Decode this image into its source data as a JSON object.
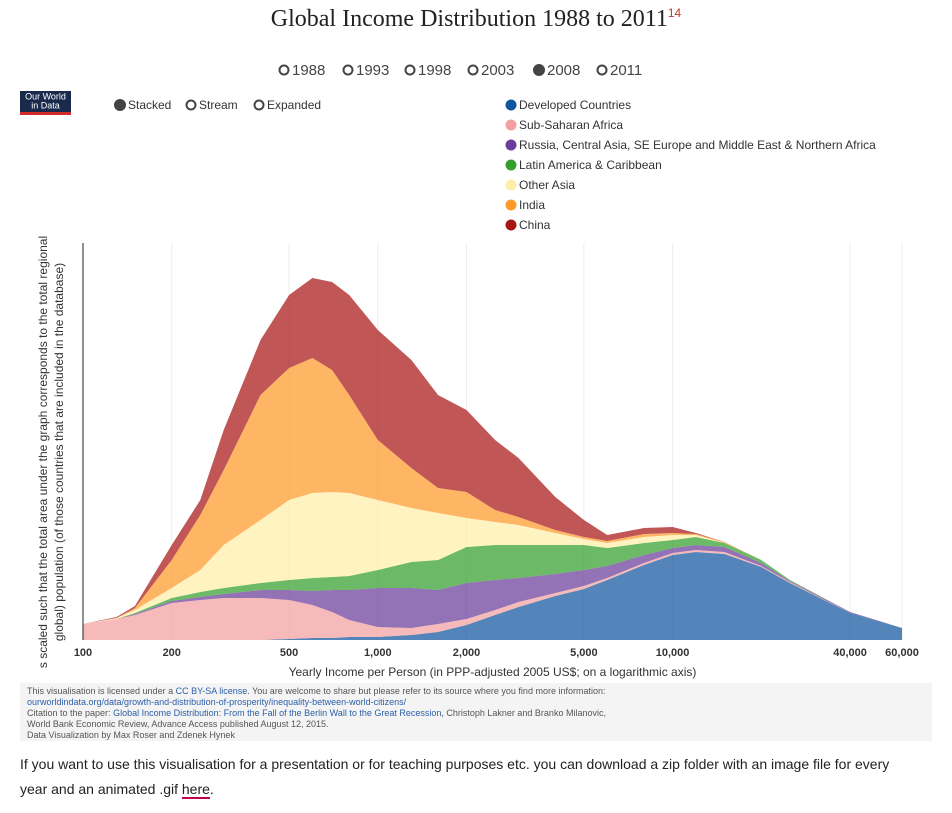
{
  "header": {
    "title": "Global Income Distribution 1988 to 2011",
    "footnote_ref": "14",
    "years": [
      "1988",
      "1993",
      "1998",
      "2003",
      "2008",
      "2011"
    ],
    "selected_year": 4,
    "logo": [
      "Our World",
      "in Data"
    ],
    "modes": [
      "Stacked",
      "Stream",
      "Expanded"
    ],
    "selected_mode": 0
  },
  "chart_data": {
    "type": "stacked-area",
    "x_label": "Yearly Income per Person (in PPP-adjusted 2005 US$; on a logarithmic axis)",
    "y_label": [
      "s scaled such that the total area under the graph corresponds to the total regional",
      "global) population (of those countries that are included in the database)"
    ],
    "x": [
      100,
      130,
      150,
      200,
      250,
      300,
      400,
      500,
      600,
      700,
      800,
      1000,
      1300,
      1600,
      2000,
      2500,
      3000,
      4000,
      5000,
      6000,
      8000,
      10000,
      12000,
      15000,
      20000,
      25000,
      40000,
      60000
    ],
    "xlim": [
      100,
      60000
    ],
    "x_log": true,
    "xticks": [
      100,
      200,
      500,
      {
        "value": 1000,
        "label": "1,000"
      },
      {
        "value": 2000,
        "label": "2,000"
      },
      {
        "value": 5000,
        "label": "5,000"
      },
      {
        "value": 10000,
        "label": "10,000"
      },
      {
        "value": 40000,
        "label": "40,000"
      },
      {
        "value": 60000,
        "label": "60,000"
      }
    ],
    "ylim": [
      0,
      400
    ],
    "grid": true,
    "fill_opacity": 0.72,
    "series": [
      {
        "name": "Developed Countries",
        "color": "#1055a0",
        "values": [
          0,
          0,
          0,
          0,
          0,
          0,
          0,
          1,
          2,
          2,
          3,
          3,
          5,
          8,
          15,
          25,
          33,
          44,
          51,
          60,
          75,
          85,
          88,
          86,
          73,
          57,
          27,
          12
        ]
      },
      {
        "name": "Sub-Saharan Africa",
        "color": "#f4a0a0",
        "values": [
          16,
          21,
          25,
          37,
          40,
          42,
          42,
          39,
          33,
          26,
          17,
          10,
          7,
          8,
          6,
          5,
          5,
          3,
          3,
          2,
          2,
          2,
          2,
          2,
          1,
          1,
          0,
          0
        ]
      },
      {
        "name": "Russia, Central Asia, SE Europe and Middle East & Northern Africa",
        "color": "#6a3d9a",
        "values": [
          0,
          0,
          1,
          2,
          3,
          4,
          8,
          10,
          14,
          22,
          30,
          39,
          40,
          34,
          36,
          30,
          24,
          19,
          16,
          12,
          8,
          5,
          5,
          5,
          3,
          1,
          1,
          0
        ]
      },
      {
        "name": "Latin America & Caribbean",
        "color": "#33a02c",
        "values": [
          0,
          0,
          1,
          3,
          5,
          6,
          7,
          10,
          13,
          13,
          14,
          18,
          26,
          30,
          36,
          35,
          33,
          29,
          25,
          18,
          12,
          8,
          8,
          4,
          3,
          1,
          0,
          0
        ]
      },
      {
        "name": "Other Asia",
        "color": "#ffeeaa",
        "values": [
          0,
          1,
          3,
          10,
          22,
          43,
          63,
          80,
          85,
          85,
          83,
          70,
          54,
          47,
          29,
          23,
          20,
          12,
          6,
          5,
          6,
          5,
          2,
          0,
          0,
          0,
          0,
          0
        ]
      },
      {
        "name": "India",
        "color": "#fd9a2a",
        "values": [
          0,
          0,
          2,
          28,
          55,
          75,
          125,
          132,
          135,
          122,
          98,
          60,
          40,
          25,
          26,
          12,
          8,
          3,
          2,
          2,
          3,
          2,
          1,
          1,
          0,
          0,
          0,
          0
        ]
      },
      {
        "name": "China",
        "color": "#a81515",
        "values": [
          0,
          1,
          2,
          15,
          15,
          40,
          55,
          73,
          80,
          88,
          100,
          110,
          108,
          93,
          82,
          70,
          59,
          33,
          17,
          6,
          6,
          6,
          1,
          0,
          0,
          0,
          0,
          0
        ]
      }
    ]
  },
  "footer": {
    "license_pre": "This visualisation is licensed under a ",
    "license_link": "CC BY-SA license",
    "license_post": ". You are welcome to share but please refer to its source where you find more information: ",
    "source_link": "ourworldindata.org/data/growth-and-distribution-of-prosperity/inequality-between-world-citizens/",
    "citation_pre": "Citation to the paper: ",
    "citation_link": "Global Income Distribution: From the Fall of the Berlin Wall to the Great Recession",
    "citation_post": ", Christoph Lakner and Branko Milanovic, World Bank Economic Review, Advance Access published August 12, 2015.",
    "credit": "Data Visualization by Max Roser and Zdenek Hynek"
  },
  "note": {
    "text": "If you want to use this visualisation for a presentation or for teaching purposes etc. you can download a zip folder with an image file for every year and an animated .gif ",
    "link": "here",
    "end": "."
  }
}
